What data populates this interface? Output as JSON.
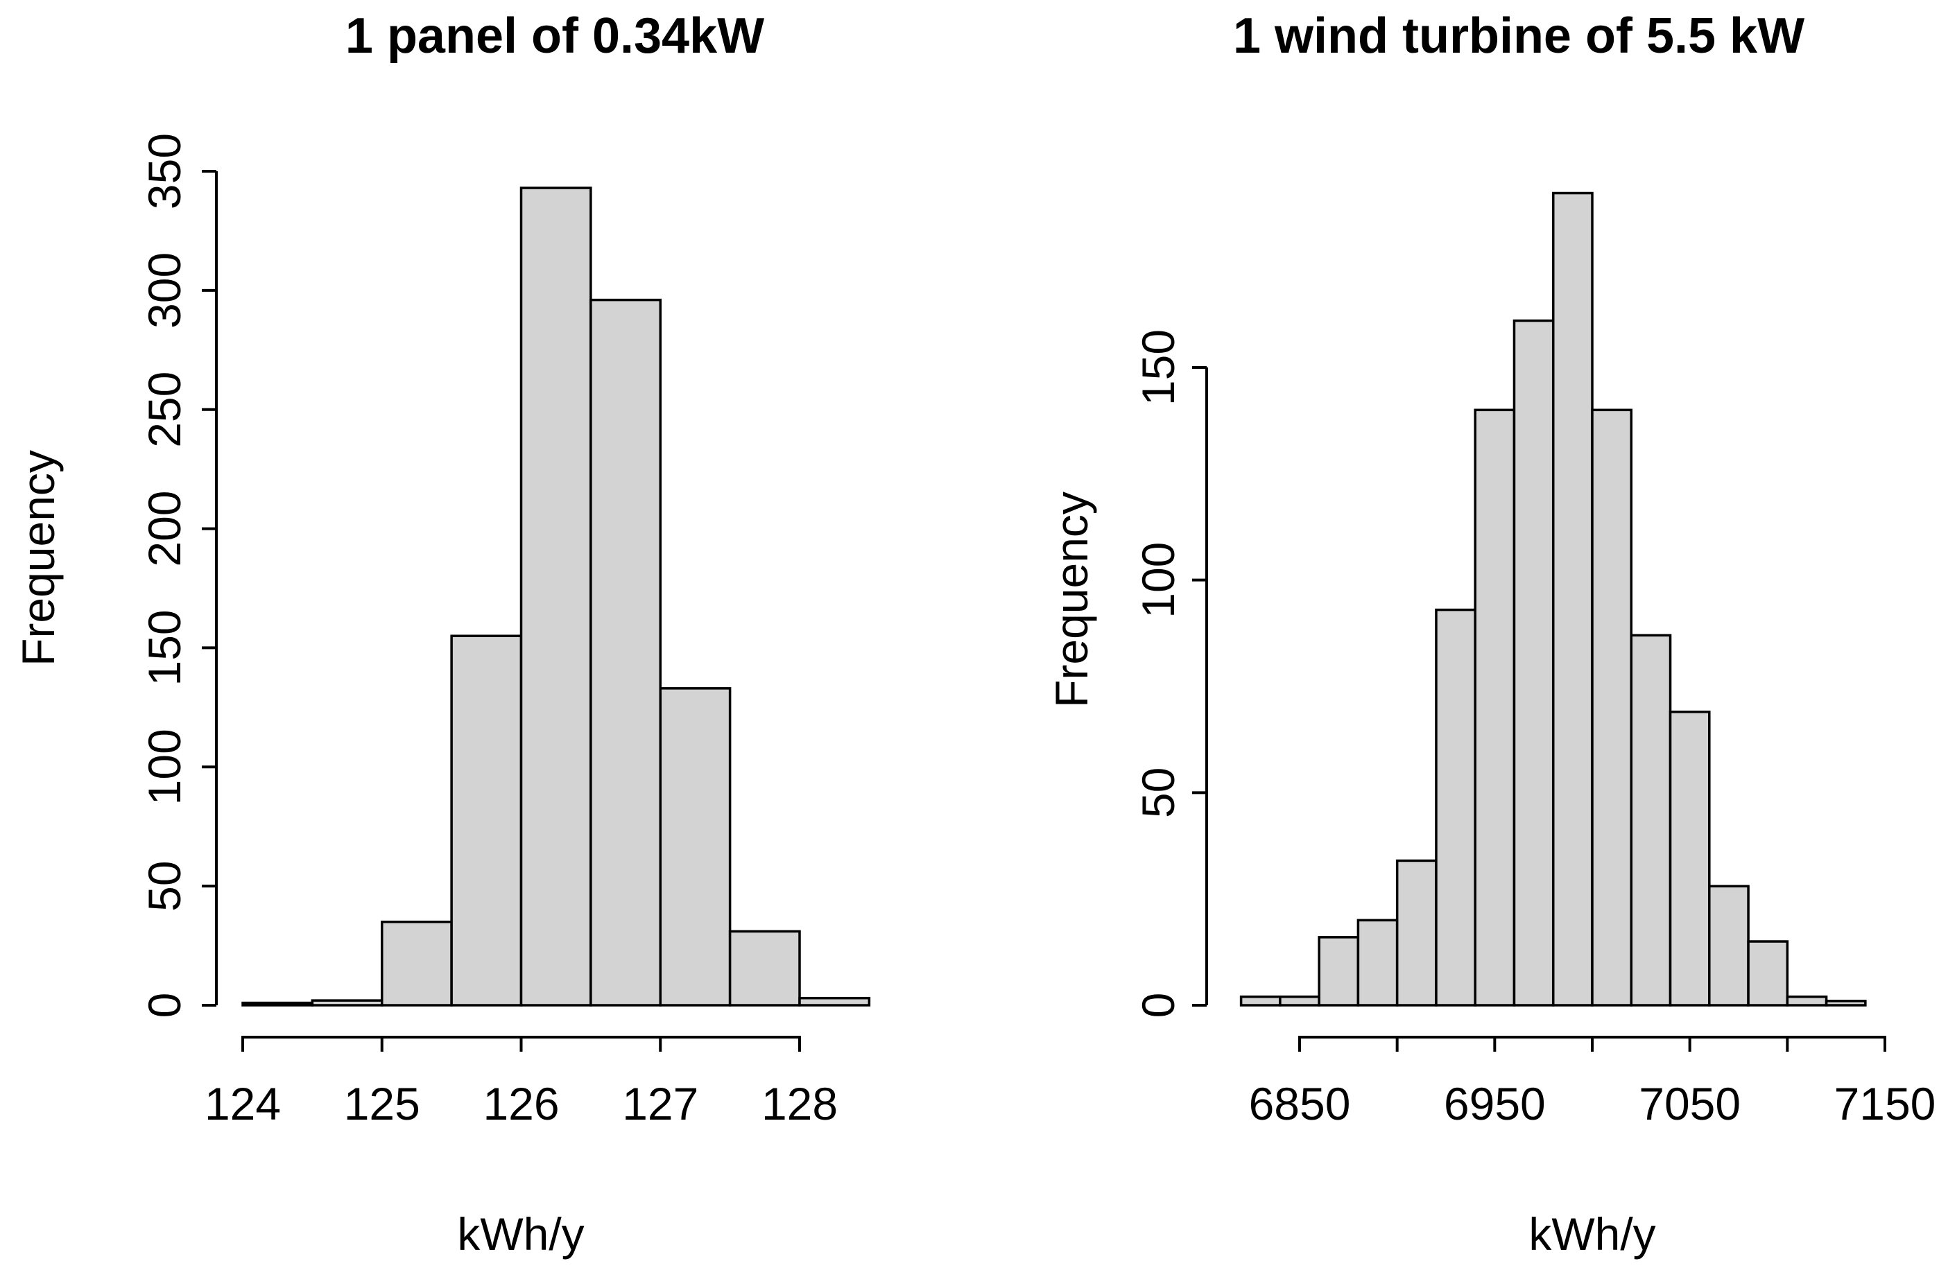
{
  "page": {
    "background_color": "#ffffff",
    "text_color": "#000000"
  },
  "chart_data": [
    {
      "type": "bar",
      "variant": "histogram",
      "title": "1 panel of 0.34kW",
      "xlabel": "kWh/y",
      "ylabel": "Frequency",
      "bin_start": 124,
      "bin_width": 0.5,
      "counts": [
        1,
        2,
        35,
        155,
        343,
        296,
        133,
        31,
        3
      ],
      "bin_edges": [
        124,
        124.5,
        125,
        125.5,
        126,
        126.5,
        127,
        127.5,
        128,
        128.5
      ],
      "x_tick_values": [
        124,
        125,
        126,
        127,
        128
      ],
      "x_tick_labels": [
        "124",
        "125",
        "126",
        "127",
        "128"
      ],
      "y_tick_values": [
        0,
        50,
        100,
        150,
        200,
        250,
        300,
        350
      ],
      "y_tick_labels": [
        "0",
        "50",
        "100",
        "150",
        "200",
        "250",
        "300",
        "350"
      ],
      "xlim": [
        124,
        128.5
      ],
      "ylim": [
        0,
        350
      ],
      "grid": false,
      "legend": null,
      "bar_fill": "#d3d3d3",
      "bar_stroke": "#000000",
      "axis_color": "#000000"
    },
    {
      "type": "bar",
      "variant": "histogram",
      "title": "1 wind turbine of 5.5 kW",
      "xlabel": "kWh/y",
      "ylabel": "Frequency",
      "bin_start": 6820,
      "bin_width": 20,
      "counts": [
        2,
        2,
        16,
        20,
        34,
        93,
        140,
        161,
        191,
        140,
        87,
        69,
        28,
        15,
        2,
        1
      ],
      "bin_edges": [
        6820,
        6840,
        6860,
        6880,
        6900,
        6920,
        6940,
        6960,
        6980,
        7000,
        7020,
        7040,
        7060,
        7080,
        7100,
        7120,
        7140
      ],
      "x_tick_values": [
        6850,
        6900,
        6950,
        7000,
        7050,
        7100,
        7150
      ],
      "x_tick_labels": [
        "6850",
        "",
        "6950",
        "",
        "7050",
        "",
        "7150"
      ],
      "y_tick_values": [
        0,
        50,
        100,
        150
      ],
      "y_tick_labels": [
        "0",
        "50",
        "100",
        "150"
      ],
      "xlim": [
        6820,
        7150
      ],
      "ylim": [
        0,
        191
      ],
      "grid": false,
      "legend": null,
      "bar_fill": "#d3d3d3",
      "bar_stroke": "#000000",
      "axis_color": "#000000"
    }
  ]
}
